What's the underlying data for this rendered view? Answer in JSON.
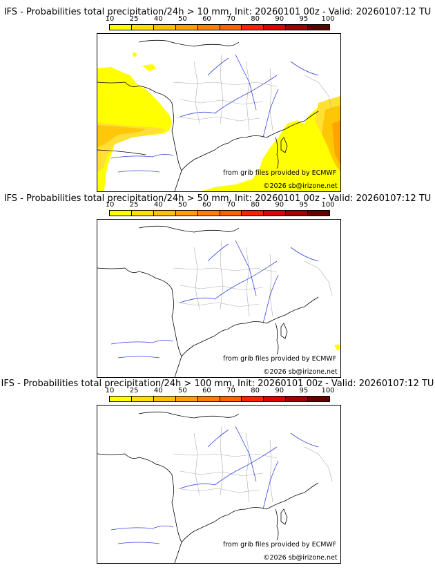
{
  "colorbar": {
    "ticks": [
      "10",
      "25",
      "40",
      "50",
      "60",
      "70",
      "80",
      "90",
      "95",
      "100"
    ],
    "colors": [
      "#ffff00",
      "#ffe000",
      "#ffc000",
      "#ffa000",
      "#ff8000",
      "#ff6000",
      "#ff2000",
      "#e00000",
      "#a00000",
      "#600000"
    ]
  },
  "panels": [
    {
      "title": "IFS - Probabilities total precipitation/24h > 10 mm, Init: 20260101 00z - Valid: 20260107:12 TU",
      "credit_ecmwf": "from grib files provided by ECMWF",
      "credit_site": "©2026 sb@irizone.net",
      "threshold": "> 10 mm"
    },
    {
      "title": "IFS - Probabilities total precipitation/24h > 50 mm, Init: 20260101 00z - Valid: 20260107:12 TU",
      "credit_ecmwf": "from grib files provided by ECMWF",
      "credit_site": "©2026 sb@irizone.net",
      "threshold": "> 50 mm"
    },
    {
      "title": "IFS - Probabilities total precipitation/24h > 100 mm, Init: 20260101 00z - Valid: 20260107:12 TU",
      "credit_ecmwf": "from grib files provided by ECMWF",
      "credit_site": "©2026 sb@irizone.net",
      "threshold": "> 100 mm"
    }
  ]
}
